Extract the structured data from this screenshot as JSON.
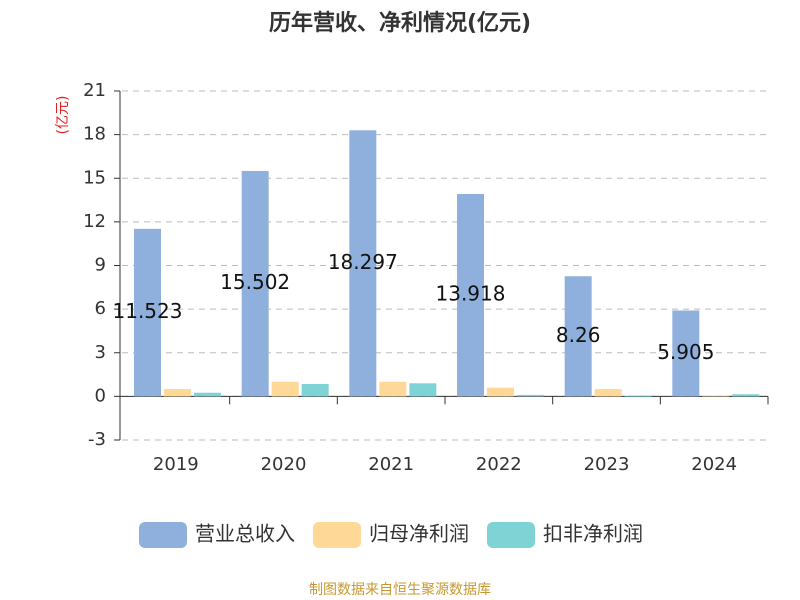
{
  "chart_data": {
    "type": "bar",
    "title": "历年营收、净利情况(亿元)",
    "y_label": "(亿元)",
    "categories": [
      "2019",
      "2020",
      "2021",
      "2022",
      "2023",
      "2024"
    ],
    "series": [
      {
        "name": "营业总收入",
        "color": "#8fb0dc",
        "values": [
          11.523,
          15.502,
          18.297,
          13.918,
          8.26,
          5.905
        ],
        "show_labels": true
      },
      {
        "name": "归母净利润",
        "color": "#fdd897",
        "values": [
          0.5,
          1.0,
          1.0,
          0.6,
          0.5,
          0.05
        ]
      },
      {
        "name": "扣非净利润",
        "color": "#7fd3d5",
        "values": [
          0.25,
          0.85,
          0.9,
          0.1,
          -0.05,
          0.15
        ]
      }
    ],
    "ylim": [
      -3,
      21
    ],
    "yticks": [
      -3,
      0,
      3,
      6,
      9,
      12,
      15,
      18,
      21
    ],
    "grid": true,
    "legend": "bottom",
    "source": "制图数据来自恒生聚源数据库"
  }
}
